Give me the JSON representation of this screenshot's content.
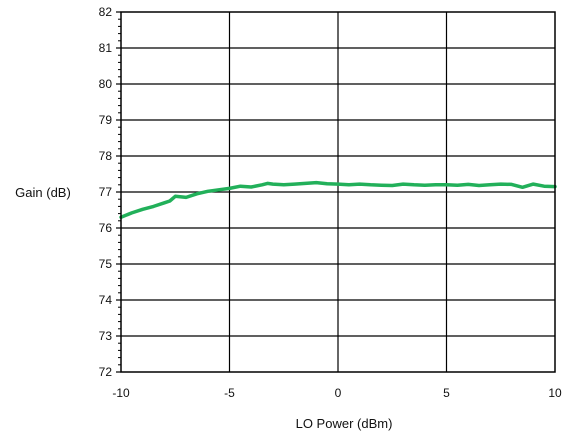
{
  "chart_data": {
    "type": "line",
    "title": "",
    "xlabel": "LO Power (dBm)",
    "ylabel": "Gain (dB)",
    "xlim": [
      -10,
      10
    ],
    "ylim": [
      72,
      82
    ],
    "x_ticks": [
      "-10",
      "-5",
      "0",
      "5",
      "10"
    ],
    "y_ticks": [
      "72",
      "73",
      "74",
      "75",
      "76",
      "77",
      "78",
      "79",
      "80",
      "81",
      "82"
    ],
    "grid": true,
    "line_color": "#22b05a",
    "series": [
      {
        "x": [
          -10,
          -9.5,
          -9,
          -8.5,
          -8,
          -7.75,
          -7.5,
          -7,
          -6.5,
          -6,
          -5.5,
          -5,
          -4.5,
          -4,
          -3.5,
          -3.25,
          -3,
          -2.5,
          -2,
          -1.5,
          -1,
          -0.5,
          0,
          0.5,
          1,
          1.5,
          2,
          2.5,
          3,
          3.5,
          4,
          4.5,
          5,
          5.5,
          6,
          6.5,
          7,
          7.5,
          8,
          8.5,
          9,
          9.5,
          10
        ],
        "y": [
          76.3,
          76.42,
          76.52,
          76.6,
          76.7,
          76.75,
          76.88,
          76.85,
          76.95,
          77.02,
          77.06,
          77.1,
          77.16,
          77.14,
          77.2,
          77.24,
          77.22,
          77.2,
          77.22,
          77.24,
          77.26,
          77.23,
          77.22,
          77.2,
          77.22,
          77.2,
          77.19,
          77.18,
          77.22,
          77.2,
          77.19,
          77.2,
          77.2,
          77.19,
          77.21,
          77.18,
          77.2,
          77.22,
          77.21,
          77.13,
          77.22,
          77.16,
          77.15
        ]
      }
    ]
  }
}
